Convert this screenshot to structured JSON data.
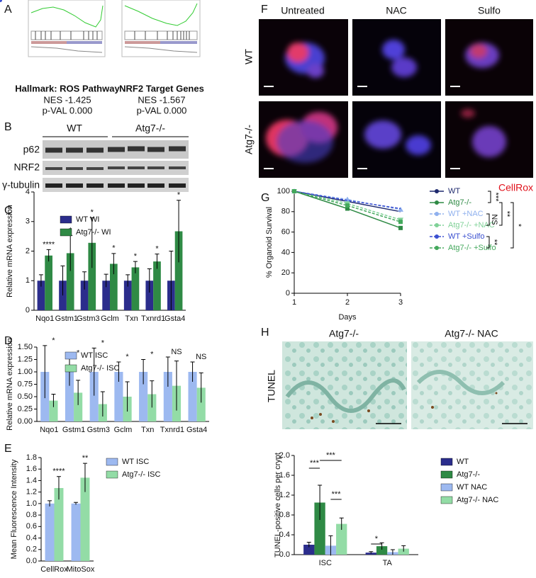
{
  "panel_labels": [
    "A",
    "B",
    "C",
    "D",
    "E",
    "F",
    "G",
    "H"
  ],
  "gsea": [
    {
      "title": "Hallmark: ROS Pathway",
      "nes": "NES -1.425",
      "pval": "p-VAL 0.000"
    },
    {
      "title": "NRF2 Target Genes",
      "nes": "NES -1.567",
      "pval": "p-VAL 0.000"
    }
  ],
  "blot": {
    "groups": [
      "WT",
      "Atg7-/-"
    ],
    "rows": [
      "p62",
      "NRF2",
      "γ-tubulin"
    ]
  },
  "imaging": {
    "columns": [
      "Untreated",
      "NAC",
      "Sulfo"
    ],
    "rows": [
      "WT",
      "Atg7-/-"
    ],
    "stain": "CellRox"
  },
  "tunel": {
    "columns": [
      "Atg7-/-",
      "Atg7-/- NAC"
    ],
    "row": "TUNEL"
  },
  "chart_data": [
    {
      "type": "bar",
      "y_label": "Relative mRNA expression",
      "categories": [
        "Nqo1",
        "Gstm1",
        "Gstm3",
        "Gclm",
        "Txn",
        "Txnrd1",
        "Gsta4"
      ],
      "series": [
        {
          "name": "WT WI",
          "color": "#2b2d8c",
          "values": [
            1,
            1,
            1,
            1,
            1,
            1,
            1
          ],
          "errors": [
            0.2,
            0.5,
            0.3,
            0.22,
            0.2,
            0.4,
            1.0
          ]
        },
        {
          "name": "Atg7-/- WI",
          "color": "#2f8a45",
          "values": [
            1.85,
            1.93,
            2.28,
            1.57,
            1.45,
            1.65,
            2.67
          ],
          "errors": [
            0.2,
            0.6,
            0.85,
            0.35,
            0.2,
            0.25,
            1.05
          ]
        }
      ],
      "annotations": [
        "****",
        "*",
        "*",
        "*",
        "*",
        "*",
        "*"
      ],
      "ylim": [
        0,
        4
      ],
      "yticks": [
        0,
        1,
        2,
        3,
        4
      ]
    },
    {
      "type": "bar",
      "y_label": "Relative mRNA expression",
      "categories": [
        "Nqo1",
        "Gstm1",
        "Gstm3",
        "Gclm",
        "Txn",
        "Txnrd1",
        "Gsta4"
      ],
      "series": [
        {
          "name": "WT ISC",
          "color": "#9db9f0",
          "values": [
            1,
            1,
            1,
            1,
            1,
            1,
            1
          ],
          "errors": [
            0.53,
            0.28,
            0.48,
            0.2,
            0.25,
            0.3,
            0.2
          ]
        },
        {
          "name": "Atg7-/- ISC",
          "color": "#93dca6",
          "values": [
            0.42,
            0.58,
            0.35,
            0.5,
            0.55,
            0.72,
            0.68
          ],
          "errors": [
            0.13,
            0.25,
            0.25,
            0.3,
            0.27,
            0.5,
            0.3
          ]
        }
      ],
      "annotations": [
        "*",
        "*",
        "*",
        "*",
        "*",
        "NS",
        "NS"
      ],
      "ylim": [
        0,
        1.5
      ],
      "yticks": [
        {
          "value": 0,
          "label": "0.00"
        },
        0.25,
        {
          "value": 0.5,
          "label": "0.50"
        },
        0.75,
        {
          "value": 1,
          "label": "1.00"
        },
        1.25,
        {
          "value": 1.5,
          "label": "1.50"
        }
      ]
    },
    {
      "type": "bar",
      "y_label": "Mean Fluorescence Intensity",
      "categories": [
        "CellRox",
        "MitoSox"
      ],
      "series": [
        {
          "name": "WT ISC",
          "color": "#9db9f0",
          "values": [
            1.0,
            1.0
          ],
          "errors": [
            0.05,
            0.02
          ]
        },
        {
          "name": "Atg7-/- ISC",
          "color": "#93dca6",
          "values": [
            1.27,
            1.45
          ],
          "errors": [
            0.2,
            0.25
          ]
        }
      ],
      "annotations": [
        "****",
        "**"
      ],
      "ylim": [
        0,
        1.8
      ],
      "yticks": [
        {
          "value": 0,
          "label": "0.0"
        },
        0.2,
        0.4,
        0.6,
        0.8,
        {
          "value": 1,
          "label": "1.0"
        },
        1.2,
        1.4,
        1.6,
        1.8
      ]
    },
    {
      "type": "line",
      "y_label": "% Organoid Survival",
      "x_label": "Days",
      "x": [
        1,
        2,
        3
      ],
      "series": [
        {
          "name": "WT",
          "color": "#1f2a6e",
          "values": [
            100,
            90,
            80
          ],
          "dashed": false,
          "marker": "circle"
        },
        {
          "name": "Atg7-/-",
          "color": "#2f8a45",
          "values": [
            100,
            83,
            64
          ],
          "dashed": false,
          "marker": "square"
        },
        {
          "name": "WT +NAC",
          "color": "#8fb0ee",
          "values": [
            100,
            92,
            82
          ],
          "dashed": true,
          "marker": "triangle"
        },
        {
          "name": "Atg7-/- +NAC",
          "color": "#7fd197",
          "values": [
            100,
            88,
            72
          ],
          "dashed": true,
          "marker": "triangle-down"
        },
        {
          "name": "WT +Sulfo",
          "color": "#3a4fd0",
          "values": [
            100,
            91,
            83
          ],
          "dashed": true,
          "marker": "circle"
        },
        {
          "name": "Atg7-/- +Sulfo",
          "color": "#43a85c",
          "values": [
            100,
            86,
            70
          ],
          "dashed": true,
          "marker": "square"
        }
      ],
      "annotations": [
        "***",
        "NS",
        "**",
        "*",
        "**"
      ],
      "xlim": [
        1,
        3
      ],
      "xticks": [
        1,
        2,
        3
      ],
      "ylim": [
        0,
        100
      ],
      "yticks": [
        0,
        20,
        40,
        60,
        80,
        100
      ]
    },
    {
      "type": "bar",
      "y_label": "TUNEL-positive cells per crypt",
      "categories": [
        "ISC",
        "TA"
      ],
      "series": [
        {
          "name": "WT",
          "color": "#2b2d8c",
          "values": [
            0.2,
            0.04
          ],
          "errors": [
            0.05,
            0.02
          ]
        },
        {
          "name": "Atg7-/-",
          "color": "#2f8a45",
          "values": [
            1.05,
            0.17
          ],
          "errors": [
            0.35,
            0.07
          ]
        },
        {
          "name": "WT NAC",
          "color": "#9db9f0",
          "values": [
            0.18,
            0.05
          ],
          "errors": [
            0.2,
            0.05
          ]
        },
        {
          "name": "Atg7-/- NAC",
          "color": "#93dca6",
          "values": [
            0.62,
            0.12
          ],
          "errors": [
            0.12,
            0.06
          ]
        }
      ],
      "annotations": [
        "***",
        "***",
        "***",
        "*"
      ],
      "ylim": [
        0,
        2
      ],
      "yticks": [
        {
          "value": 0,
          "label": "0.0"
        },
        0.4,
        0.8,
        1.2,
        1.6,
        {
          "value": 2,
          "label": "2.0"
        }
      ]
    }
  ]
}
